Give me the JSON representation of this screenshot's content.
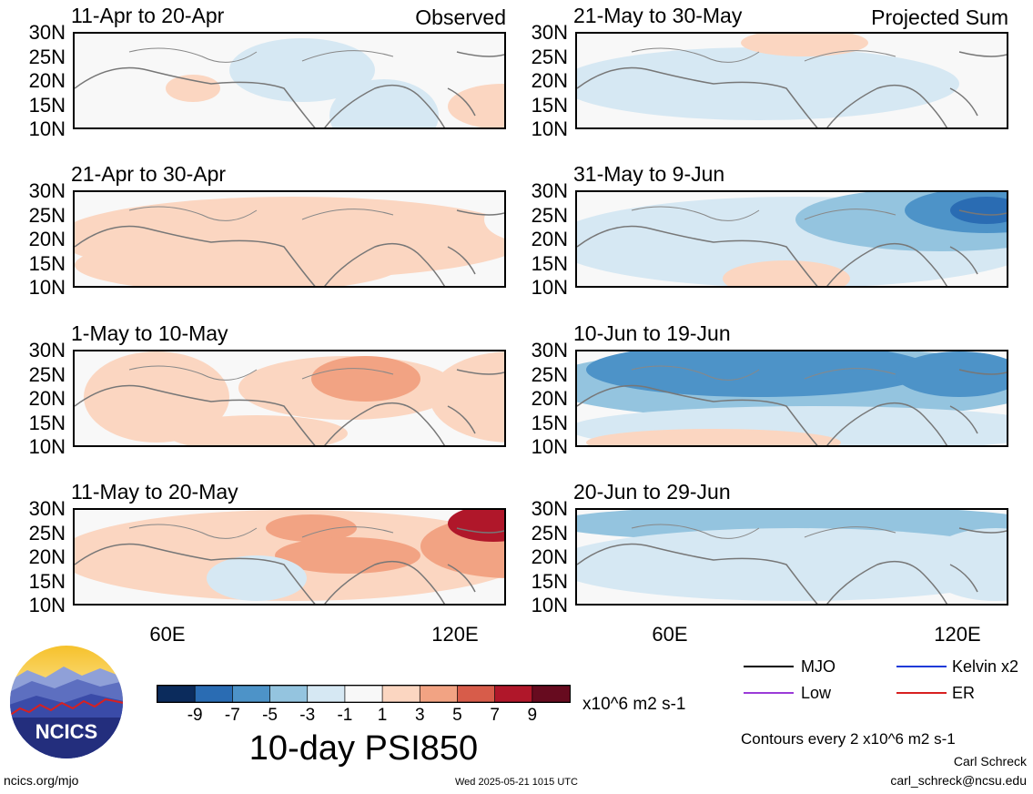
{
  "panels_left": [
    {
      "title": "11-Apr to 20-Apr",
      "tag": "Observed"
    },
    {
      "title": "21-Apr to 30-Apr",
      "tag": ""
    },
    {
      "title": "1-May to 10-May",
      "tag": ""
    },
    {
      "title": "11-May to 20-May",
      "tag": ""
    }
  ],
  "panels_right": [
    {
      "title": "21-May to 30-May",
      "tag": "Projected Sum"
    },
    {
      "title": "31-May to 9-Jun",
      "tag": ""
    },
    {
      "title": "10-Jun to 19-Jun",
      "tag": ""
    },
    {
      "title": "20-Jun to 29-Jun",
      "tag": ""
    }
  ],
  "lat_labels": [
    "30N",
    "25N",
    "20N",
    "15N",
    "10N"
  ],
  "lon_labels": [
    "60E",
    "120E"
  ],
  "colorbar": {
    "labels": [
      "-9",
      "-7",
      "-5",
      "-3",
      "-1",
      "1",
      "3",
      "5",
      "7",
      "9"
    ],
    "colors": [
      "#0b2b5c",
      "#2a6cb3",
      "#4d93c8",
      "#94c4df",
      "#d6e8f3",
      "#f8f8f8",
      "#fbd6c1",
      "#f2a383",
      "#d75c4a",
      "#b0172a",
      "#670b1f"
    ],
    "units": "x10^6 m2 s-1"
  },
  "main_title": "10-day PSI850",
  "legend": {
    "mjo": "MJO",
    "kelvin": "Kelvin x2",
    "low": "Low",
    "er": "ER",
    "colors": {
      "mjo": "#000000",
      "kelvin": "#1f3ad8",
      "low": "#9b3bd8",
      "er": "#d82020"
    }
  },
  "contour_note": "Contours every 2 x10^6 m2 s-1",
  "author": "Carl Schreck",
  "email": "carl_schreck@ncsu.edu",
  "site": "ncics.org/mjo",
  "timestamp": "Wed 2025-05-21 1015 UTC",
  "logo_text": "NCICS"
}
